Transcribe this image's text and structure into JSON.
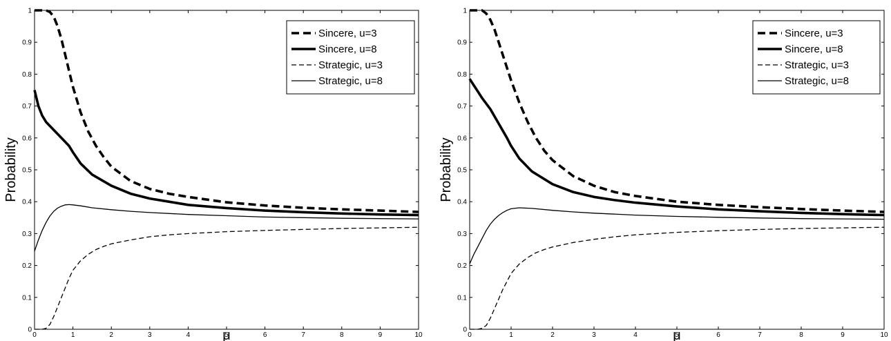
{
  "chart_data": [
    {
      "type": "line",
      "xlabel": "μ",
      "ylabel": "Probability",
      "xlim": [
        0,
        10
      ],
      "ylim": [
        0,
        1
      ],
      "xticks": [
        "0",
        "1",
        "2",
        "3",
        "4",
        "5",
        "6",
        "7",
        "8",
        "9",
        "10"
      ],
      "yticks": [
        "0",
        "0.1",
        "0.2",
        "0.3",
        "0.4",
        "0.5",
        "0.6",
        "0.7",
        "0.8",
        "0.9",
        "1"
      ],
      "legend_position": "top-right",
      "grid": false,
      "series": [
        {
          "name": "Sincere, u=3",
          "style": "thick-dashed",
          "x": [
            0,
            0.2,
            0.3,
            0.4,
            0.5,
            0.6,
            0.7,
            0.8,
            0.9,
            1.0,
            1.2,
            1.4,
            1.6,
            1.8,
            2,
            2.5,
            3,
            3.5,
            4,
            5,
            6,
            7,
            8,
            9,
            10
          ],
          "y": [
            1.0,
            1.0,
            1.0,
            0.995,
            0.98,
            0.95,
            0.91,
            0.86,
            0.81,
            0.76,
            0.68,
            0.62,
            0.575,
            0.54,
            0.51,
            0.465,
            0.44,
            0.425,
            0.415,
            0.398,
            0.388,
            0.381,
            0.376,
            0.372,
            0.368
          ]
        },
        {
          "name": "Sincere, u=8",
          "style": "thick-solid",
          "x": [
            0,
            0.1,
            0.2,
            0.3,
            0.5,
            0.7,
            0.9,
            1.0,
            1.2,
            1.5,
            2,
            2.5,
            3,
            3.5,
            4,
            5,
            6,
            7,
            8,
            9,
            10
          ],
          "y": [
            0.75,
            0.7,
            0.67,
            0.65,
            0.625,
            0.6,
            0.575,
            0.555,
            0.52,
            0.485,
            0.45,
            0.425,
            0.41,
            0.4,
            0.39,
            0.38,
            0.372,
            0.367,
            0.363,
            0.36,
            0.358
          ]
        },
        {
          "name": "Strategic, u=3",
          "style": "thin-dashed",
          "x": [
            0,
            0.2,
            0.3,
            0.4,
            0.5,
            0.6,
            0.7,
            0.8,
            0.9,
            1.0,
            1.2,
            1.4,
            1.6,
            1.8,
            2,
            2.5,
            3,
            3.5,
            4,
            5,
            6,
            7,
            8,
            9,
            10
          ],
          "y": [
            0.0,
            0.0,
            0.003,
            0.015,
            0.04,
            0.07,
            0.1,
            0.13,
            0.16,
            0.185,
            0.215,
            0.235,
            0.25,
            0.26,
            0.268,
            0.28,
            0.29,
            0.296,
            0.3,
            0.306,
            0.31,
            0.313,
            0.316,
            0.318,
            0.32
          ]
        },
        {
          "name": "Strategic, u=8",
          "style": "thin-solid",
          "x": [
            0,
            0.1,
            0.2,
            0.3,
            0.4,
            0.5,
            0.6,
            0.7,
            0.8,
            0.9,
            1.0,
            1.2,
            1.5,
            2,
            2.5,
            3,
            4,
            5,
            6,
            7,
            8,
            9,
            10
          ],
          "y": [
            0.245,
            0.28,
            0.31,
            0.335,
            0.355,
            0.37,
            0.38,
            0.386,
            0.39,
            0.391,
            0.39,
            0.387,
            0.381,
            0.375,
            0.37,
            0.366,
            0.36,
            0.356,
            0.352,
            0.35,
            0.348,
            0.347,
            0.346
          ]
        }
      ]
    },
    {
      "type": "line",
      "xlabel": "μ",
      "ylabel": "Probability",
      "xlim": [
        0,
        10
      ],
      "ylim": [
        0,
        1
      ],
      "xticks": [
        "0",
        "1",
        "2",
        "3",
        "4",
        "5",
        "6",
        "7",
        "8",
        "9",
        "10"
      ],
      "yticks": [
        "0",
        "0.1",
        "0.2",
        "0.3",
        "0.4",
        "0.5",
        "0.6",
        "0.7",
        "0.8",
        "0.9",
        "1"
      ],
      "legend_position": "top-right",
      "grid": false,
      "series": [
        {
          "name": "Sincere, u=3",
          "style": "thick-dashed",
          "x": [
            0,
            0.2,
            0.3,
            0.4,
            0.5,
            0.6,
            0.7,
            0.8,
            0.9,
            1.0,
            1.2,
            1.4,
            1.6,
            1.8,
            2,
            2.5,
            3,
            3.5,
            4,
            5,
            6,
            7,
            8,
            9,
            10
          ],
          "y": [
            1.0,
            1.0,
            1.0,
            0.99,
            0.97,
            0.94,
            0.9,
            0.86,
            0.82,
            0.78,
            0.71,
            0.65,
            0.6,
            0.56,
            0.53,
            0.48,
            0.45,
            0.43,
            0.418,
            0.4,
            0.39,
            0.383,
            0.377,
            0.372,
            0.368
          ]
        },
        {
          "name": "Sincere, u=8",
          "style": "thick-solid",
          "x": [
            0,
            0.1,
            0.2,
            0.3,
            0.5,
            0.7,
            0.9,
            1.0,
            1.2,
            1.5,
            2,
            2.5,
            3,
            3.5,
            4,
            5,
            6,
            7,
            8,
            9,
            10
          ],
          "y": [
            0.785,
            0.765,
            0.745,
            0.725,
            0.69,
            0.645,
            0.6,
            0.575,
            0.535,
            0.495,
            0.455,
            0.43,
            0.415,
            0.405,
            0.397,
            0.385,
            0.376,
            0.37,
            0.365,
            0.361,
            0.358
          ]
        },
        {
          "name": "Strategic, u=3",
          "style": "thin-dashed",
          "x": [
            0,
            0.2,
            0.3,
            0.4,
            0.5,
            0.6,
            0.7,
            0.8,
            0.9,
            1.0,
            1.2,
            1.4,
            1.6,
            1.8,
            2,
            2.5,
            3,
            3.5,
            4,
            5,
            6,
            7,
            8,
            9,
            10
          ],
          "y": [
            0.0,
            0.0,
            0.003,
            0.012,
            0.035,
            0.065,
            0.095,
            0.125,
            0.15,
            0.175,
            0.205,
            0.225,
            0.24,
            0.25,
            0.258,
            0.272,
            0.282,
            0.29,
            0.296,
            0.304,
            0.309,
            0.313,
            0.316,
            0.318,
            0.32
          ]
        },
        {
          "name": "Strategic, u=8",
          "style": "thin-solid",
          "x": [
            0,
            0.1,
            0.2,
            0.3,
            0.4,
            0.5,
            0.6,
            0.7,
            0.8,
            0.9,
            1.0,
            1.2,
            1.5,
            2,
            2.5,
            3,
            4,
            5,
            6,
            7,
            8,
            9,
            10
          ],
          "y": [
            0.205,
            0.235,
            0.26,
            0.285,
            0.31,
            0.33,
            0.345,
            0.357,
            0.366,
            0.373,
            0.378,
            0.381,
            0.379,
            0.373,
            0.368,
            0.364,
            0.358,
            0.354,
            0.351,
            0.349,
            0.347,
            0.346,
            0.345
          ]
        }
      ]
    }
  ]
}
